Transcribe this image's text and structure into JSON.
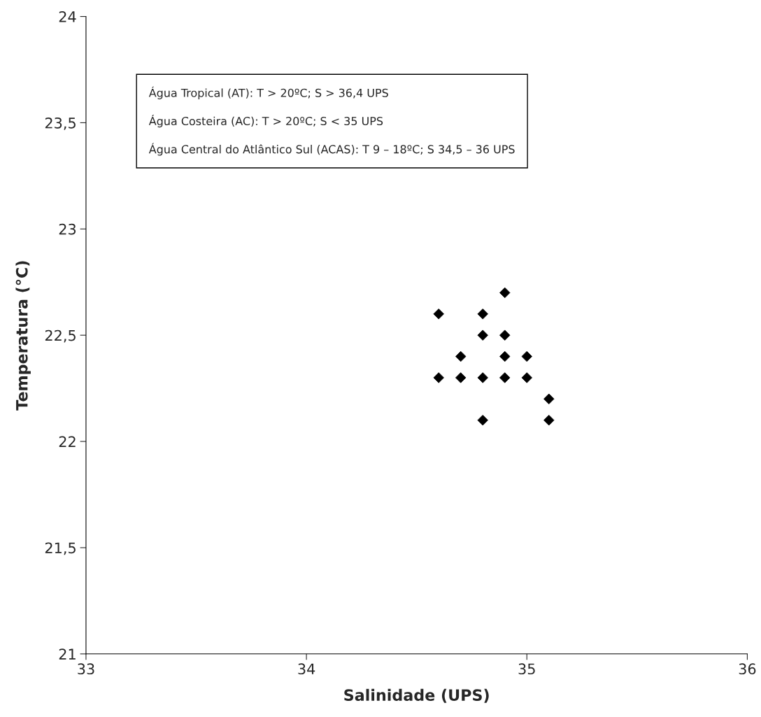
{
  "chart_data": {
    "type": "scatter",
    "xlabel": "Salinidade (UPS)",
    "ylabel": "Temperatura (°C)",
    "x": [
      34.6,
      34.6,
      34.7,
      34.7,
      34.8,
      34.8,
      34.8,
      34.8,
      34.9,
      34.9,
      34.9,
      34.9,
      35.0,
      35.0,
      35.1,
      35.1
    ],
    "values": [
      22.6,
      22.3,
      22.4,
      22.3,
      22.6,
      22.5,
      22.3,
      22.1,
      22.7,
      22.5,
      22.4,
      22.3,
      22.4,
      22.3,
      22.2,
      22.1
    ],
    "color": "#000000",
    "marker": "diamond",
    "grid": false,
    "xlim": [
      33,
      36
    ],
    "xticks": [
      33,
      34,
      35,
      36
    ],
    "ylim": [
      21,
      24
    ],
    "yticks": [
      21,
      {
        "value": 21.5,
        "label": "21,5"
      },
      22,
      {
        "value": 22.5,
        "label": "22,5"
      },
      23,
      {
        "value": 23.5,
        "label": "23,5"
      },
      24
    ],
    "annotations": [
      "Água Tropical (AT): T > 20ºC; S > 36,4 UPS",
      "Água Costeira (AC): T > 20ºC; S < 35 UPS",
      "Água Central do Atlântico Sul (ACAS): T 9 – 18ºC; S 34,5 – 36 UPS"
    ]
  }
}
